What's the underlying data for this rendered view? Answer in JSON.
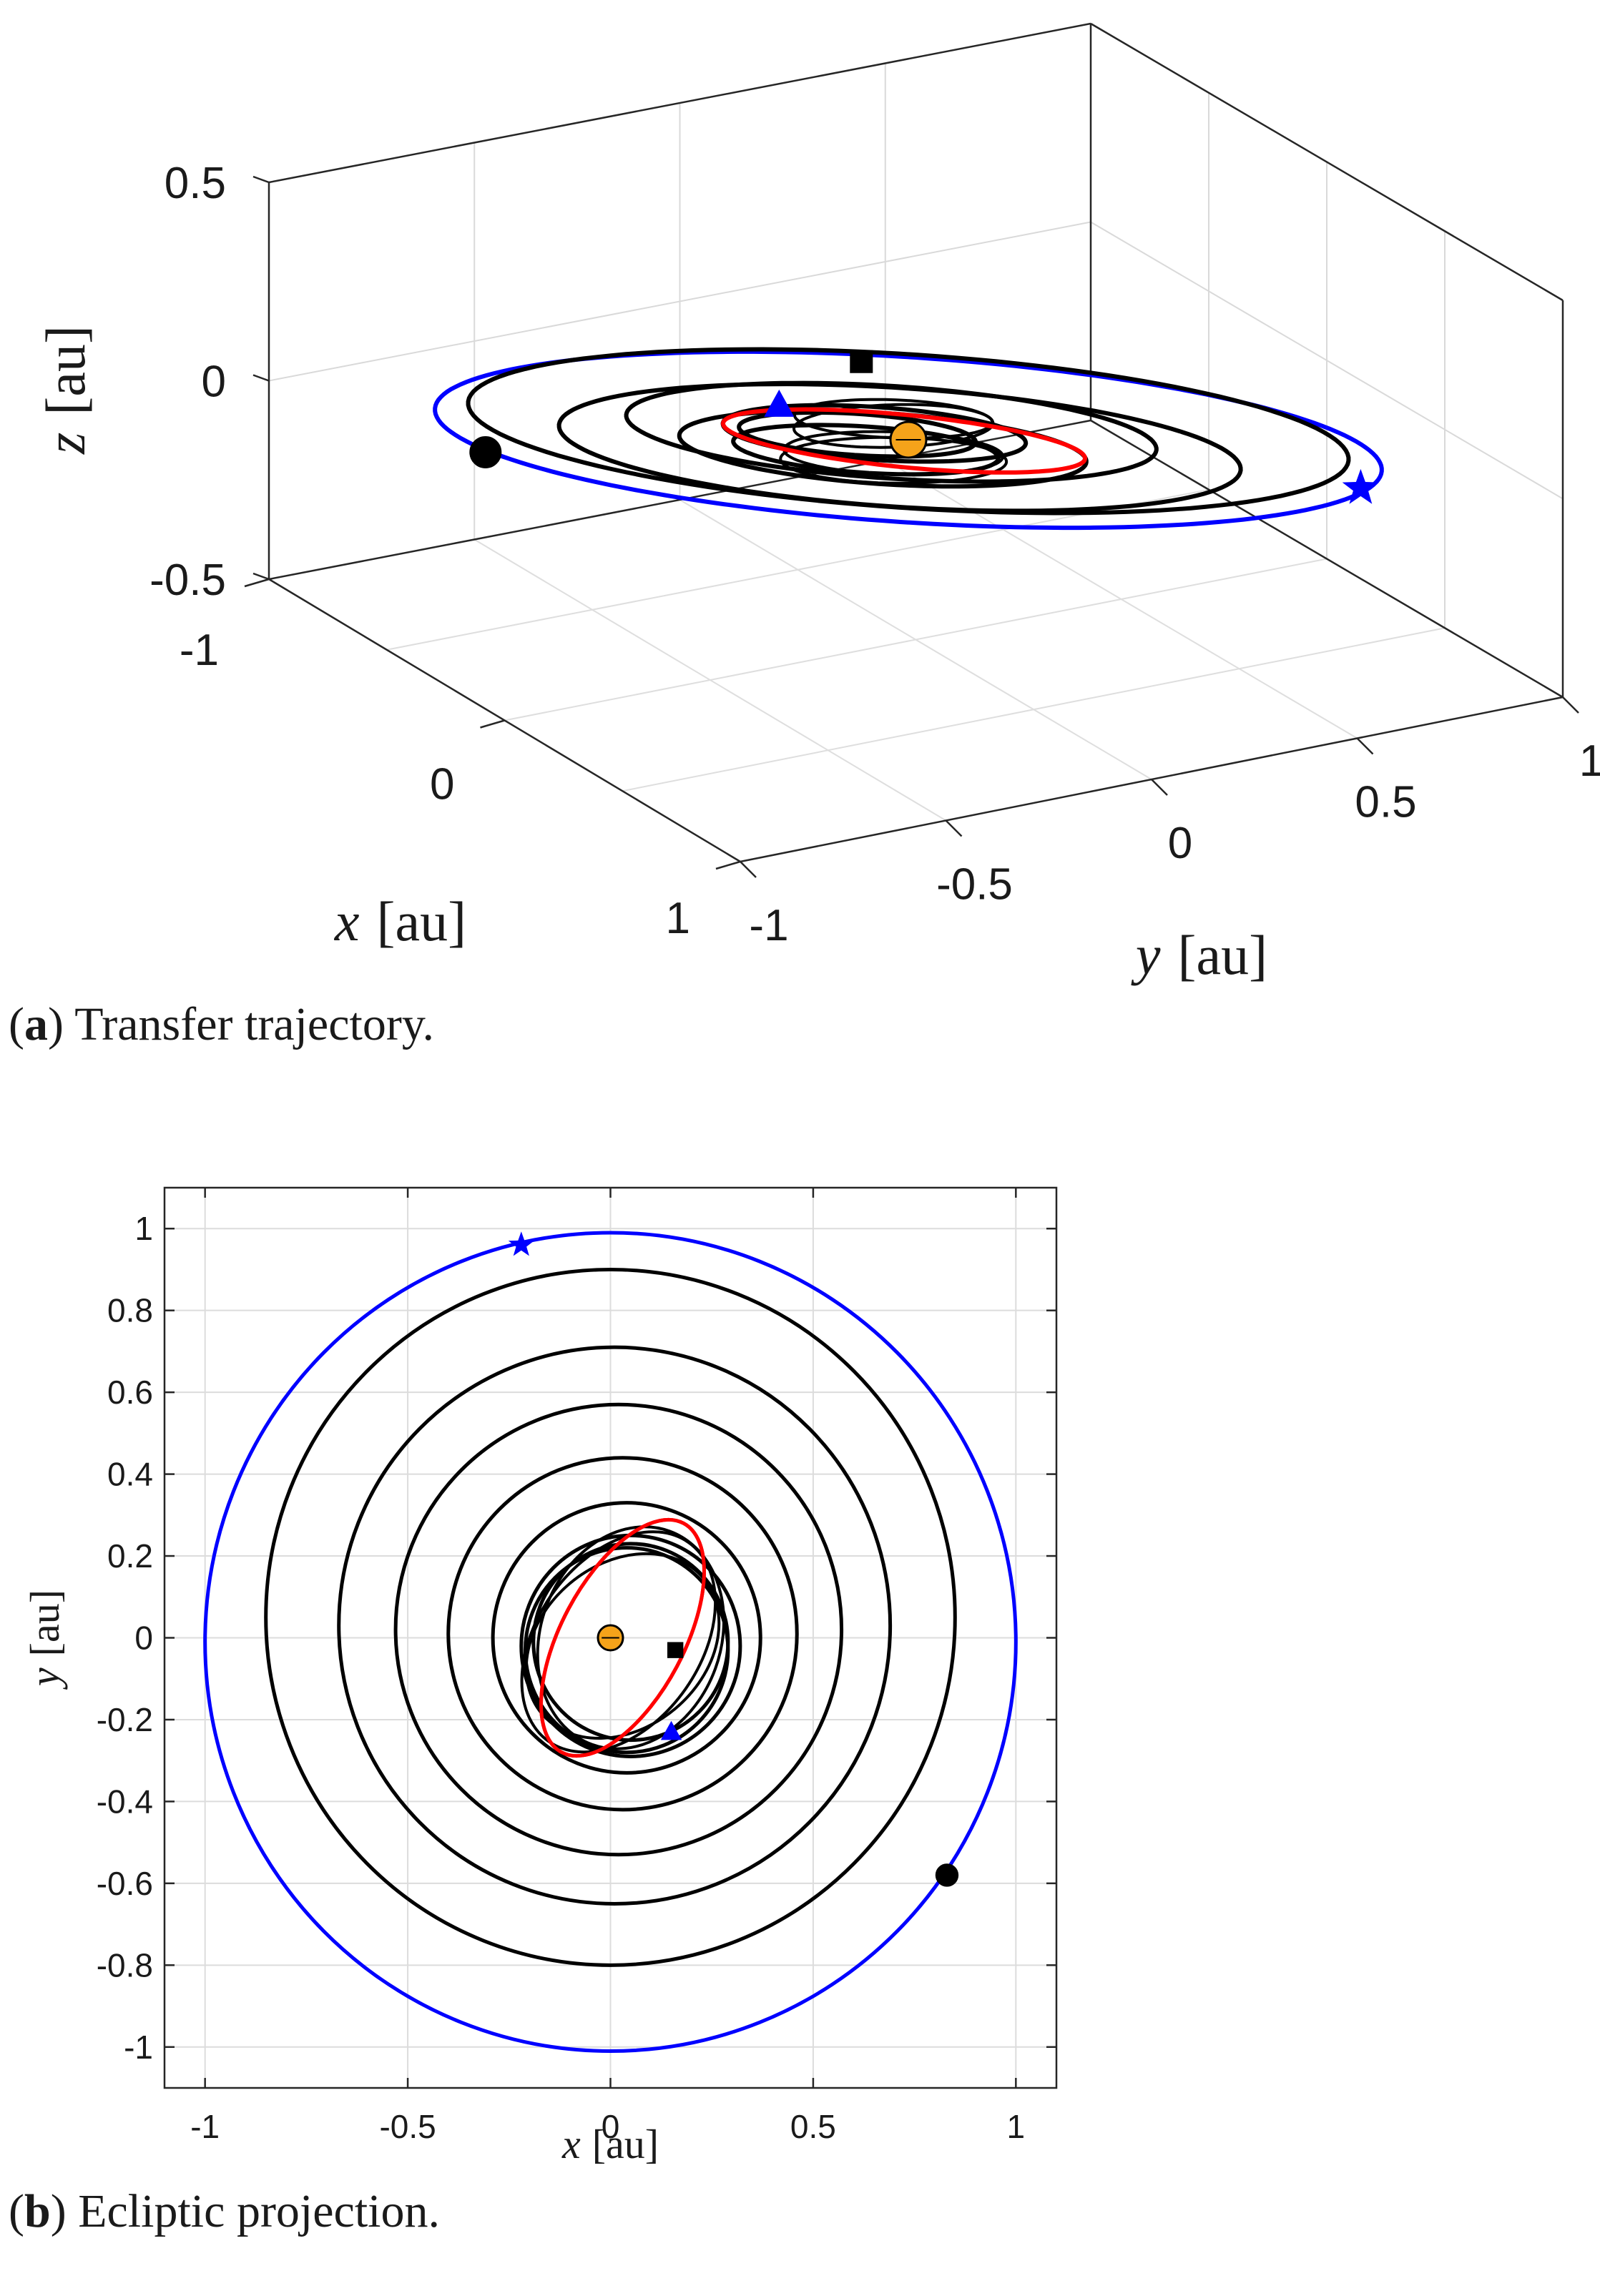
{
  "chart_data": [
    {
      "type": "line",
      "view": "3d",
      "caption_letter": "a",
      "caption_text": "Transfer trajectory.",
      "xlabel_var": "x",
      "xlabel_unit": "[au]",
      "ylabel_var": "y",
      "ylabel_unit": "[au]",
      "zlabel_var": "z",
      "zlabel_unit": "[au]",
      "xlim": [
        -1,
        1
      ],
      "ylim": [
        -1,
        1
      ],
      "zlim": [
        -0.5,
        0.5
      ],
      "x_ticks": [
        "-1",
        "0",
        "1"
      ],
      "y_ticks": [
        "-1",
        "-0.5",
        "0",
        "0.5",
        "1"
      ],
      "z_ticks": [
        "0.5",
        "0",
        "-0.5"
      ],
      "grid": true,
      "series": [
        {
          "role": "departure-orbit",
          "color": "#0000ff",
          "shape": "ellipse",
          "center": [
            0,
            0
          ],
          "a": 1.0,
          "b": 1.0
        },
        {
          "role": "target-orbit",
          "color": "#ff0000",
          "shape": "ellipse",
          "center": [
            0,
            0
          ],
          "a": 0.32,
          "b": 0.25
        },
        {
          "role": "transfer",
          "color": "#000000",
          "shape": "spiral",
          "radii": [
            0.93,
            0.72,
            0.56,
            0.43,
            0.32,
            0.28,
            0.25
          ]
        }
      ],
      "markers": [
        {
          "role": "sun",
          "shape": "circle",
          "color": "#f5a31a",
          "x": 0,
          "y": 0
        },
        {
          "role": "start",
          "shape": "circle",
          "color": "#000000",
          "x": 0.83,
          "y": -0.58
        },
        {
          "role": "star",
          "shape": "star",
          "color": "#0000ff",
          "x": -0.22,
          "y": 0.96
        },
        {
          "role": "square",
          "shape": "square",
          "color": "#000000",
          "x": 0.16,
          "y": -0.03
        },
        {
          "role": "triangle",
          "shape": "triangle",
          "color": "#0000ff",
          "x": 0.15,
          "y": -0.23
        }
      ]
    },
    {
      "type": "line",
      "view": "2d",
      "caption_letter": "b",
      "caption_text": "Ecliptic projection.",
      "xlabel_var": "x",
      "xlabel_unit": "[au]",
      "ylabel_var": "y",
      "ylabel_unit": "[au]",
      "xlim": [
        -1.1,
        1.1
      ],
      "ylim": [
        -1.1,
        1.1
      ],
      "x_ticks": [
        "-1",
        "-0.5",
        "0",
        "0.5",
        "1"
      ],
      "y_ticks": [
        "1",
        "0.8",
        "0.6",
        "0.4",
        "0.2",
        "0",
        "-0.2",
        "-0.4",
        "-0.6",
        "-0.8",
        "-1"
      ],
      "grid": true,
      "series": [
        {
          "role": "departure-orbit",
          "color": "#0000ff",
          "shape": "circle",
          "center": [
            0,
            -0.01
          ],
          "r": 1.0
        },
        {
          "role": "target-orbit",
          "color": "#ff0000",
          "shape": "tilted-ellipse",
          "center": [
            0.03,
            0.0
          ],
          "a": 0.32,
          "b": 0.15,
          "angle_deg": 62
        },
        {
          "role": "transfer",
          "color": "#000000",
          "shape": "circles",
          "circles": [
            {
              "cx": 0.0,
              "cy": 0.05,
              "r": 0.85
            },
            {
              "cx": 0.01,
              "cy": 0.03,
              "r": 0.68
            },
            {
              "cx": 0.02,
              "cy": 0.02,
              "r": 0.55
            },
            {
              "cx": 0.03,
              "cy": 0.01,
              "r": 0.43
            },
            {
              "cx": 0.04,
              "cy": 0.0,
              "r": 0.33
            },
            {
              "cx": 0.05,
              "cy": -0.02,
              "r": 0.27
            },
            {
              "cx": 0.04,
              "cy": -0.03,
              "r": 0.25
            },
            {
              "cx": 0.05,
              "cy": -0.01,
              "r": 0.24
            }
          ]
        }
      ],
      "markers": [
        {
          "role": "sun",
          "shape": "circle",
          "color": "#f5a31a",
          "x": 0,
          "y": 0
        },
        {
          "role": "start",
          "shape": "circle",
          "color": "#000000",
          "x": 0.83,
          "y": -0.58
        },
        {
          "role": "star",
          "shape": "star",
          "color": "#0000ff",
          "x": -0.22,
          "y": 0.96
        },
        {
          "role": "square",
          "shape": "square",
          "color": "#000000",
          "x": 0.16,
          "y": -0.03
        },
        {
          "role": "triangle",
          "shape": "triangle",
          "color": "#0000ff",
          "x": 0.15,
          "y": -0.23
        }
      ]
    }
  ]
}
